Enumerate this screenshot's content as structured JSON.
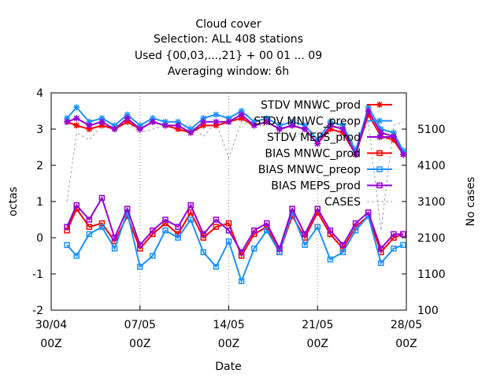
{
  "chart_data": {
    "type": "line",
    "title_lines": [
      "Cloud cover",
      "Selection: ALL    408 stations",
      "Used {00,03,...,21} + 00 01 ... 09",
      "Averaging window:  6h"
    ],
    "xlabel": "Date",
    "ylabel": "octas",
    "y2label": "No cases",
    "x_range": [
      "2025-04-30T00:00",
      "2025-05-28T00:00"
    ],
    "ylim": [
      -2,
      4
    ],
    "y2lim": [
      100,
      6100
    ],
    "y_ticks": [
      "-2",
      "-1",
      "0",
      "1",
      "2",
      "3",
      "4"
    ],
    "y2_ticks": [
      "100",
      "1100",
      "2100",
      "3100",
      "4100",
      "5100"
    ],
    "x_ticks": [
      {
        "date": "30/04",
        "hour": "00Z"
      },
      {
        "date": "07/05",
        "hour": "00Z"
      },
      {
        "date": "14/05",
        "hour": "00Z"
      },
      {
        "date": "21/05",
        "hour": "00Z"
      },
      {
        "date": "28/05",
        "hour": "00Z"
      }
    ],
    "grid": true,
    "legend_position": "top-right",
    "series": [
      {
        "name": "STDV MNWC_prod",
        "axis": "y",
        "color": "#ff0000",
        "marker": "star",
        "dash": "solid"
      },
      {
        "name": "STDV MNWC_preop",
        "axis": "y",
        "color": "#1e90ff",
        "marker": "star",
        "dash": "solid"
      },
      {
        "name": "STDV MEPS_prod",
        "axis": "y",
        "color": "#9400d3",
        "marker": "star",
        "dash": "solid"
      },
      {
        "name": "BIAS MNWC_prod",
        "axis": "y",
        "color": "#ff0000",
        "marker": "square",
        "dash": "solid"
      },
      {
        "name": "BIAS MNWC_preop",
        "axis": "y",
        "color": "#1e90ff",
        "marker": "square",
        "dash": "solid"
      },
      {
        "name": "BIAS MEPS_prod",
        "axis": "y",
        "color": "#9400d3",
        "marker": "square",
        "dash": "solid"
      },
      {
        "name": "CASES",
        "axis": "y2",
        "color": "#a0a0a0",
        "marker": "none",
        "dash": "dashed"
      }
    ],
    "x": [
      "05/01 06Z",
      "05/02 00Z",
      "05/03 00Z",
      "05/04 00Z",
      "05/05 00Z",
      "05/06 00Z",
      "05/07 00Z",
      "05/08 00Z",
      "05/09 00Z",
      "05/10 00Z",
      "05/11 00Z",
      "05/12 00Z",
      "05/13 00Z",
      "05/14 00Z",
      "05/15 00Z",
      "05/16 00Z",
      "05/17 00Z",
      "05/18 00Z",
      "05/19 00Z",
      "05/20 00Z",
      "05/21 00Z",
      "05/22 00Z",
      "05/23 00Z",
      "05/24 00Z",
      "05/25 00Z",
      "05/26 00Z",
      "05/27 00Z",
      "05/27 18Z"
    ],
    "stdv_mnwc_prod": [
      3.2,
      3.1,
      3.0,
      3.1,
      3.0,
      3.2,
      3.0,
      3.2,
      3.1,
      3.0,
      2.9,
      3.1,
      3.1,
      3.2,
      3.3,
      3.1,
      3.2,
      3.0,
      3.1,
      3.0,
      2.6,
      3.0,
      2.9,
      2.3,
      3.4,
      2.8,
      2.7,
      2.3
    ],
    "stdv_mnwc_preop": [
      3.3,
      3.6,
      3.2,
      3.3,
      3.1,
      3.4,
      3.1,
      3.3,
      3.2,
      3.2,
      3.0,
      3.3,
      3.4,
      3.3,
      3.5,
      3.2,
      3.3,
      3.1,
      3.2,
      3.1,
      2.7,
      3.2,
      3.1,
      2.4,
      3.6,
      3.0,
      2.9,
      2.4
    ],
    "stdv_meps_prod": [
      3.2,
      3.3,
      3.1,
      3.2,
      3.0,
      3.3,
      3.0,
      3.2,
      3.1,
      3.1,
      2.9,
      3.2,
      3.2,
      3.2,
      3.4,
      3.1,
      3.2,
      3.0,
      3.1,
      3.0,
      2.6,
      3.1,
      3.0,
      2.3,
      3.5,
      2.9,
      2.8,
      2.3
    ],
    "bias_mnwc_prod": [
      0.2,
      0.8,
      0.3,
      0.4,
      -0.1,
      0.6,
      -0.3,
      0.1,
      0.4,
      0.1,
      0.7,
      0.0,
      0.3,
      0.4,
      -0.5,
      0.1,
      0.3,
      -0.4,
      0.6,
      0.0,
      0.7,
      0.1,
      -0.3,
      0.3,
      0.6,
      -0.4,
      0.0,
      0.1
    ],
    "bias_mnwc_preop": [
      -0.2,
      -0.5,
      0.1,
      0.3,
      -0.3,
      0.7,
      -0.8,
      -0.5,
      0.2,
      0.0,
      0.5,
      -0.4,
      -0.8,
      -0.1,
      -1.2,
      -0.3,
      0.2,
      -0.4,
      0.7,
      -0.2,
      0.3,
      -0.6,
      -0.4,
      0.2,
      0.6,
      -0.7,
      -0.3,
      -0.2
    ],
    "bias_meps_prod": [
      0.3,
      0.9,
      0.5,
      1.1,
      0.0,
      0.8,
      -0.2,
      0.2,
      0.5,
      0.3,
      0.9,
      0.1,
      0.5,
      0.2,
      -0.4,
      0.2,
      0.4,
      -0.3,
      0.8,
      0.1,
      0.8,
      0.2,
      -0.2,
      0.4,
      0.7,
      -0.3,
      0.1,
      0.1
    ],
    "cases": [
      3100,
      5000,
      4800,
      5200,
      5100,
      5300,
      5000,
      5100,
      5200,
      5100,
      5200,
      4900,
      5300,
      4300,
      5300,
      5200,
      5200,
      5300,
      4800,
      5100,
      5000,
      5100,
      5200,
      4600,
      5300,
      2300,
      5200,
      5300
    ]
  }
}
